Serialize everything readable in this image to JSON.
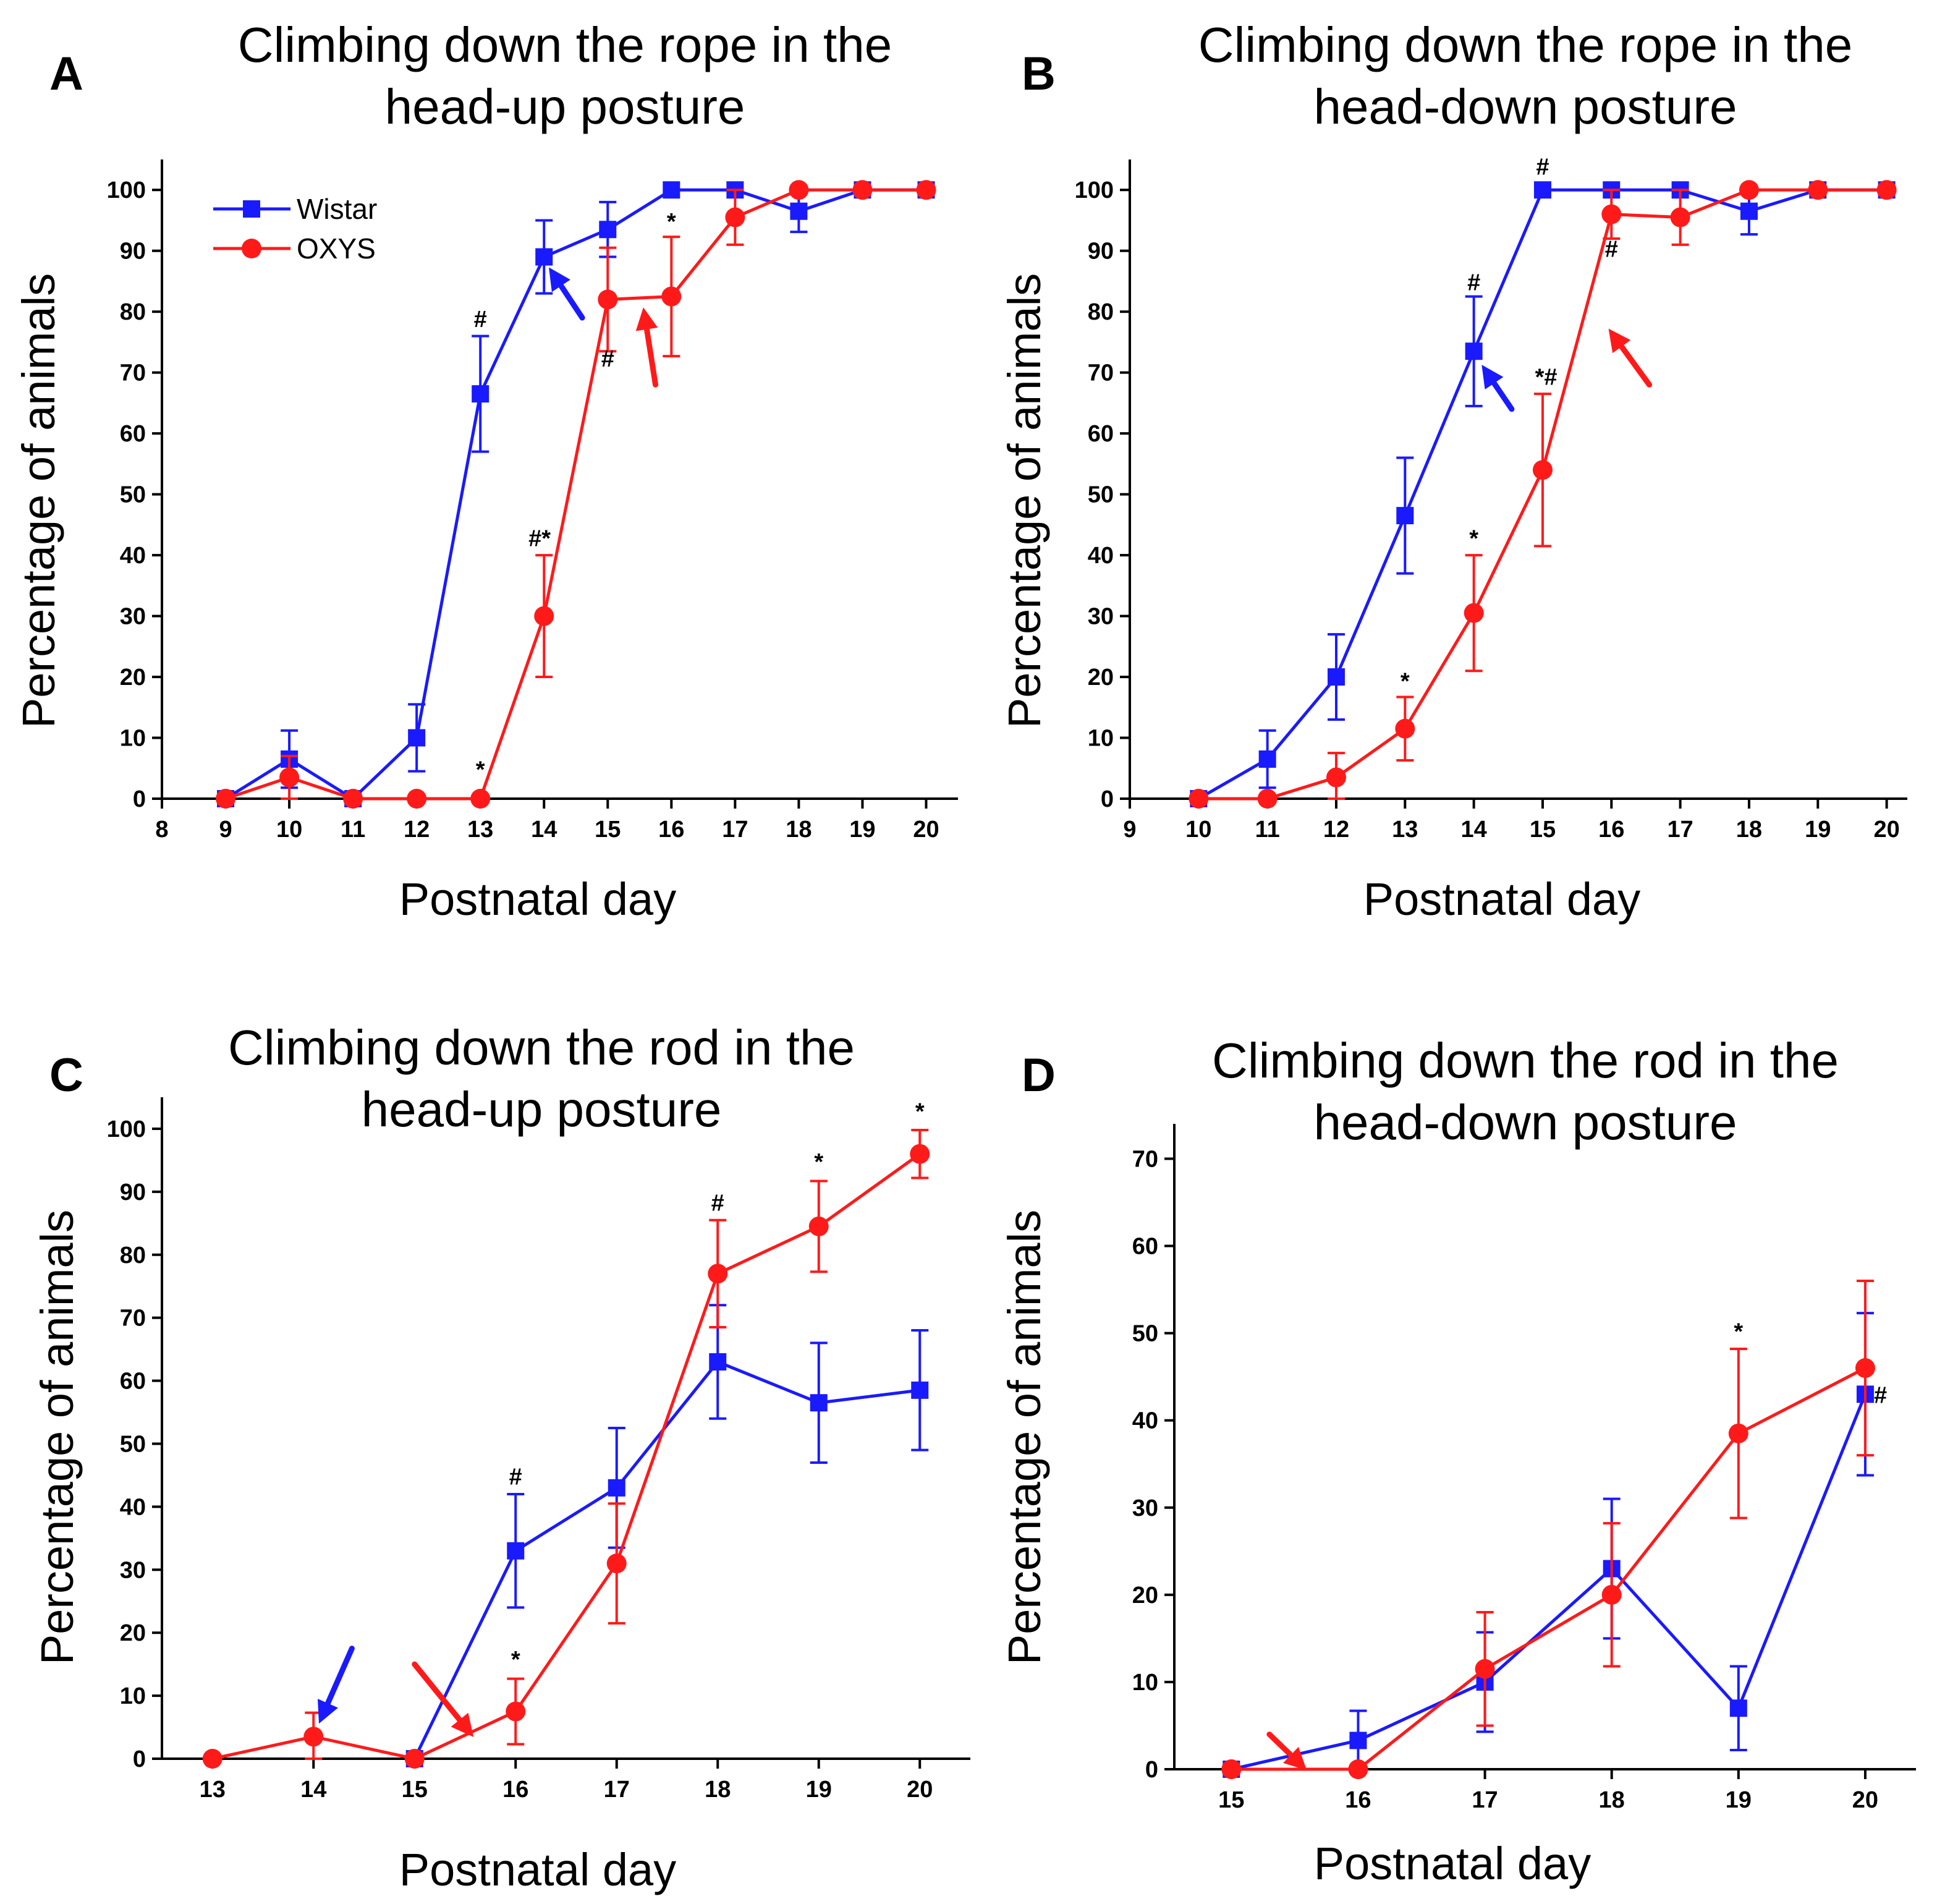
{
  "colors": {
    "wistar": "#1a1aff",
    "oxys": "#ff1a1a",
    "axis": "#000000"
  },
  "chart_data": [
    {
      "id": "A",
      "type": "line",
      "panel_letter": "A",
      "title_lines": [
        "Climbing down the rope in the",
        "head-up posture"
      ],
      "xlabel": "Postnatal day",
      "ylabel": "Percentage of animals",
      "xlim": [
        8,
        20.5
      ],
      "ylim": [
        0,
        105
      ],
      "xticks": [
        8,
        9,
        10,
        11,
        12,
        13,
        14,
        15,
        16,
        17,
        18,
        19,
        20
      ],
      "yticks": [
        0,
        10,
        20,
        30,
        40,
        50,
        60,
        70,
        80,
        90,
        100
      ],
      "legend": {
        "position": "top-left",
        "entries": [
          "Wistar",
          "OXYS"
        ]
      },
      "series": [
        {
          "name": "Wistar",
          "color_key": "wistar",
          "marker": "square",
          "x": [
            9,
            10,
            11,
            12,
            13,
            14,
            15,
            16,
            17,
            18,
            19,
            20
          ],
          "y": [
            0,
            6.5,
            0,
            10,
            66.5,
            89,
            93.5,
            100,
            100,
            96.5,
            100,
            100
          ],
          "err": [
            0,
            4.7,
            0,
            5.5,
            9.5,
            6,
            4.5,
            0,
            0,
            3.4,
            0,
            0
          ]
        },
        {
          "name": "OXYS",
          "color_key": "oxys",
          "marker": "circle",
          "x": [
            9,
            10,
            11,
            12,
            13,
            14,
            15,
            16,
            17,
            18,
            19,
            20
          ],
          "y": [
            0,
            3.5,
            0,
            0,
            0,
            30,
            82,
            82.5,
            95.5,
            100,
            100,
            100
          ],
          "err": [
            0,
            3.5,
            0,
            0,
            0,
            10,
            8.5,
            9.8,
            4.5,
            0,
            0,
            0
          ]
        }
      ],
      "annotations": [
        {
          "text": "#",
          "x": 13,
          "y": 77.5
        },
        {
          "text": "#*",
          "x": 13.93,
          "y": 41.5
        },
        {
          "text": "*",
          "x": 13,
          "y": 3.5
        },
        {
          "text": "#",
          "x": 15,
          "y": 71
        },
        {
          "text": "*",
          "x": 16,
          "y": 93.5
        }
      ],
      "arrows": [
        {
          "color_key": "wistar",
          "from": [
            14.6,
            79
          ],
          "to": [
            14.22,
            85
          ]
        },
        {
          "color_key": "oxys",
          "from": [
            15.75,
            68
          ],
          "to": [
            15.6,
            78
          ]
        }
      ]
    },
    {
      "id": "B",
      "type": "line",
      "panel_letter": "B",
      "title_lines": [
        "Climbing down the rope in the",
        "head-down posture"
      ],
      "xlabel": "Postnatal day",
      "ylabel": "Percentage of animals",
      "xlim": [
        9,
        20.3
      ],
      "ylim": [
        0,
        105
      ],
      "xticks": [
        9,
        10,
        11,
        12,
        13,
        14,
        15,
        16,
        17,
        18,
        19,
        20
      ],
      "yticks": [
        0,
        10,
        20,
        30,
        40,
        50,
        60,
        70,
        80,
        90,
        100
      ],
      "series": [
        {
          "name": "Wistar",
          "color_key": "wistar",
          "marker": "square",
          "x": [
            10,
            11,
            12,
            13,
            14,
            15,
            16,
            17,
            18,
            19,
            20
          ],
          "y": [
            0,
            6.5,
            20,
            46.5,
            73.5,
            100,
            100,
            100,
            96.5,
            100,
            100
          ],
          "err": [
            0,
            4.7,
            7,
            9.5,
            9,
            0,
            0,
            0,
            3.8,
            0,
            0
          ]
        },
        {
          "name": "OXYS",
          "color_key": "oxys",
          "marker": "circle",
          "x": [
            10,
            11,
            12,
            13,
            14,
            15,
            16,
            17,
            18,
            19,
            20
          ],
          "y": [
            0,
            0,
            3.5,
            11.5,
            30.5,
            54,
            96,
            95.5,
            100,
            100,
            100
          ],
          "err": [
            0,
            0,
            4,
            5.2,
            9.5,
            12.5,
            4,
            4.5,
            0,
            0,
            0
          ]
        }
      ],
      "annotations": [
        {
          "text": "#",
          "x": 15,
          "y": 102.5
        },
        {
          "text": "#",
          "x": 14,
          "y": 83.5
        },
        {
          "text": "*#",
          "x": 15.05,
          "y": 68
        },
        {
          "text": "*",
          "x": 14,
          "y": 41.5
        },
        {
          "text": "*",
          "x": 13,
          "y": 18
        },
        {
          "text": "#",
          "x": 16,
          "y": 89
        }
      ],
      "arrows": [
        {
          "color_key": "wistar",
          "from": [
            14.55,
            64
          ],
          "to": [
            14.25,
            69
          ]
        },
        {
          "color_key": "oxys",
          "from": [
            16.55,
            68
          ],
          "to": [
            16.1,
            75
          ]
        }
      ]
    },
    {
      "id": "C",
      "type": "line",
      "panel_letter": "C",
      "title_lines": [
        "Climbing down the rod in the",
        "head-up posture"
      ],
      "xlabel": "Postnatal day",
      "ylabel": "Percentage of animals",
      "xlim": [
        12.5,
        20.5
      ],
      "ylim": [
        0,
        105
      ],
      "xticks": [
        13,
        14,
        15,
        16,
        17,
        18,
        19,
        20
      ],
      "yticks": [
        0,
        10,
        20,
        30,
        40,
        50,
        60,
        70,
        80,
        90,
        100
      ],
      "series": [
        {
          "name": "Wistar",
          "color_key": "wistar",
          "marker": "square",
          "x": [
            15,
            16,
            17,
            18,
            19,
            20
          ],
          "y": [
            0,
            33,
            43,
            63,
            56.5,
            58.5
          ],
          "err": [
            0,
            9,
            9.5,
            9,
            9.5,
            9.5
          ]
        },
        {
          "name": "OXYS",
          "color_key": "oxys",
          "marker": "circle",
          "x": [
            13,
            14,
            15,
            16,
            17,
            18,
            19,
            20
          ],
          "y": [
            0,
            3.5,
            0,
            7.5,
            31,
            77,
            84.5,
            96
          ],
          "err": [
            0,
            3.8,
            0,
            5.2,
            9.5,
            8.5,
            7.2,
            3.8
          ]
        }
      ],
      "annotations": [
        {
          "text": "#",
          "x": 16,
          "y": 43.5
        },
        {
          "text": "*",
          "x": 16,
          "y": 14.5
        },
        {
          "text": "#",
          "x": 18,
          "y": 87
        },
        {
          "text": "*",
          "x": 19,
          "y": 93.5
        },
        {
          "text": "*",
          "x": 20,
          "y": 101.5
        }
      ],
      "arrows": [
        {
          "color_key": "wistar",
          "from": [
            14.38,
            17.5
          ],
          "to": [
            14.12,
            8
          ]
        },
        {
          "color_key": "oxys",
          "from": [
            15.0,
            15
          ],
          "to": [
            15.48,
            5.5
          ]
        }
      ]
    },
    {
      "id": "D",
      "type": "line",
      "panel_letter": "D",
      "title_lines": [
        "Climbing down the rod in the",
        "head-down posture"
      ],
      "xlabel": "Postnatal day",
      "ylabel": "Percentage of animals",
      "xlim": [
        14.55,
        20.4
      ],
      "ylim": [
        0,
        74
      ],
      "xticks": [
        15,
        16,
        17,
        18,
        19,
        20
      ],
      "yticks": [
        0,
        10,
        20,
        30,
        40,
        50,
        60,
        70
      ],
      "series": [
        {
          "name": "Wistar",
          "color_key": "wistar",
          "marker": "square",
          "x": [
            15,
            16,
            17,
            18,
            19,
            20
          ],
          "y": [
            0,
            3.3,
            10,
            23,
            7,
            43
          ],
          "err": [
            0,
            3.4,
            5.7,
            8,
            4.8,
            9.3
          ]
        },
        {
          "name": "OXYS",
          "color_key": "oxys",
          "marker": "circle",
          "x": [
            15,
            16,
            17,
            18,
            19,
            20
          ],
          "y": [
            0,
            0,
            11.5,
            20,
            38.5,
            46
          ],
          "err": [
            0,
            0,
            6.5,
            8.2,
            9.7,
            10
          ]
        }
      ],
      "annotations": [
        {
          "text": "*",
          "x": 19,
          "y": 49.3
        },
        {
          "text": "#",
          "x": 20.12,
          "y": 42
        }
      ],
      "arrows": [
        {
          "color_key": "oxys",
          "from": [
            15.3,
            4
          ],
          "to": [
            15.5,
            1.2
          ]
        }
      ]
    }
  ]
}
